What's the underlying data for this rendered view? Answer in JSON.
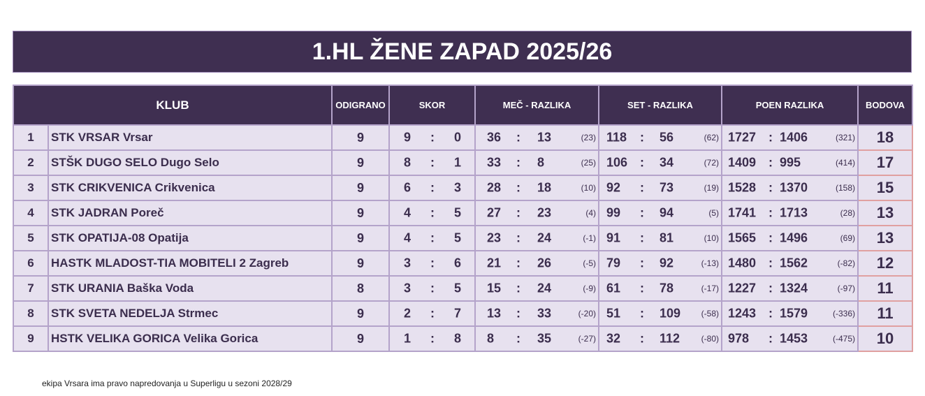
{
  "title": "1.HL ŽENE ZAPAD 2025/26",
  "headers": {
    "klub": "KLUB",
    "odigrano": "ODIGRANO",
    "skor": "SKOR",
    "mec": "MEČ - RAZLIKA",
    "set": "SET - RAZLIKA",
    "poen": "POEN RAZLIKA",
    "bodova": "BODOVA"
  },
  "separator": ":",
  "rows": [
    {
      "rank": "1",
      "club": "STK VRSAR Vrsar",
      "played": "9",
      "skor": [
        "9",
        "0"
      ],
      "mec": [
        "36",
        "13",
        "(23)"
      ],
      "set": [
        "118",
        "56",
        "(62)"
      ],
      "poen": [
        "1727",
        "1406",
        "(321)"
      ],
      "points": "18"
    },
    {
      "rank": "2",
      "club": "STŠK DUGO SELO Dugo Selo",
      "played": "9",
      "skor": [
        "8",
        "1"
      ],
      "mec": [
        "33",
        "8",
        "(25)"
      ],
      "set": [
        "106",
        "34",
        "(72)"
      ],
      "poen": [
        "1409",
        "995",
        "(414)"
      ],
      "points": "17"
    },
    {
      "rank": "3",
      "club": "STK CRIKVENICA Crikvenica",
      "played": "9",
      "skor": [
        "6",
        "3"
      ],
      "mec": [
        "28",
        "18",
        "(10)"
      ],
      "set": [
        "92",
        "73",
        "(19)"
      ],
      "poen": [
        "1528",
        "1370",
        "(158)"
      ],
      "points": "15"
    },
    {
      "rank": "4",
      "club": "STK JADRAN  Poreč",
      "played": "9",
      "skor": [
        "4",
        "5"
      ],
      "mec": [
        "27",
        "23",
        "(4)"
      ],
      "set": [
        "99",
        "94",
        "(5)"
      ],
      "poen": [
        "1741",
        "1713",
        "(28)"
      ],
      "points": "13"
    },
    {
      "rank": "5",
      "club": "STK OPATIJA-08 Opatija",
      "played": "9",
      "skor": [
        "4",
        "5"
      ],
      "mec": [
        "23",
        "24",
        "(-1)"
      ],
      "set": [
        "91",
        "81",
        "(10)"
      ],
      "poen": [
        "1565",
        "1496",
        "(69)"
      ],
      "points": "13"
    },
    {
      "rank": "6",
      "club": "HASTK MLADOST-TIA MOBITELI 2 Zagreb",
      "played": "9",
      "skor": [
        "3",
        "6"
      ],
      "mec": [
        "21",
        "26",
        "(-5)"
      ],
      "set": [
        "79",
        "92",
        "(-13)"
      ],
      "poen": [
        "1480",
        "1562",
        "(-82)"
      ],
      "points": "12"
    },
    {
      "rank": "7",
      "club": "STK URANIA Baška Voda",
      "played": "8",
      "skor": [
        "3",
        "5"
      ],
      "mec": [
        "15",
        "24",
        "(-9)"
      ],
      "set": [
        "61",
        "78",
        "(-17)"
      ],
      "poen": [
        "1227",
        "1324",
        "(-97)"
      ],
      "points": "11"
    },
    {
      "rank": "8",
      "club": "STK SVETA NEDELJA Strmec",
      "played": "9",
      "skor": [
        "2",
        "7"
      ],
      "mec": [
        "13",
        "33",
        "(-20)"
      ],
      "set": [
        "51",
        "109",
        "(-58)"
      ],
      "poen": [
        "1243",
        "1579",
        "(-336)"
      ],
      "points": "11"
    },
    {
      "rank": "9",
      "club": "HSTK VELIKA GORICA Velika Gorica",
      "played": "9",
      "skor": [
        "1",
        "8"
      ],
      "mec": [
        "8",
        "35",
        "(-27)"
      ],
      "set": [
        "32",
        "112",
        "(-80)"
      ],
      "poen": [
        "978",
        "1453",
        "(-475)"
      ],
      "points": "10"
    }
  ],
  "note": "ekipa Vrsara ima pravo napredovanja u Superligu u sezoni 2028/29"
}
